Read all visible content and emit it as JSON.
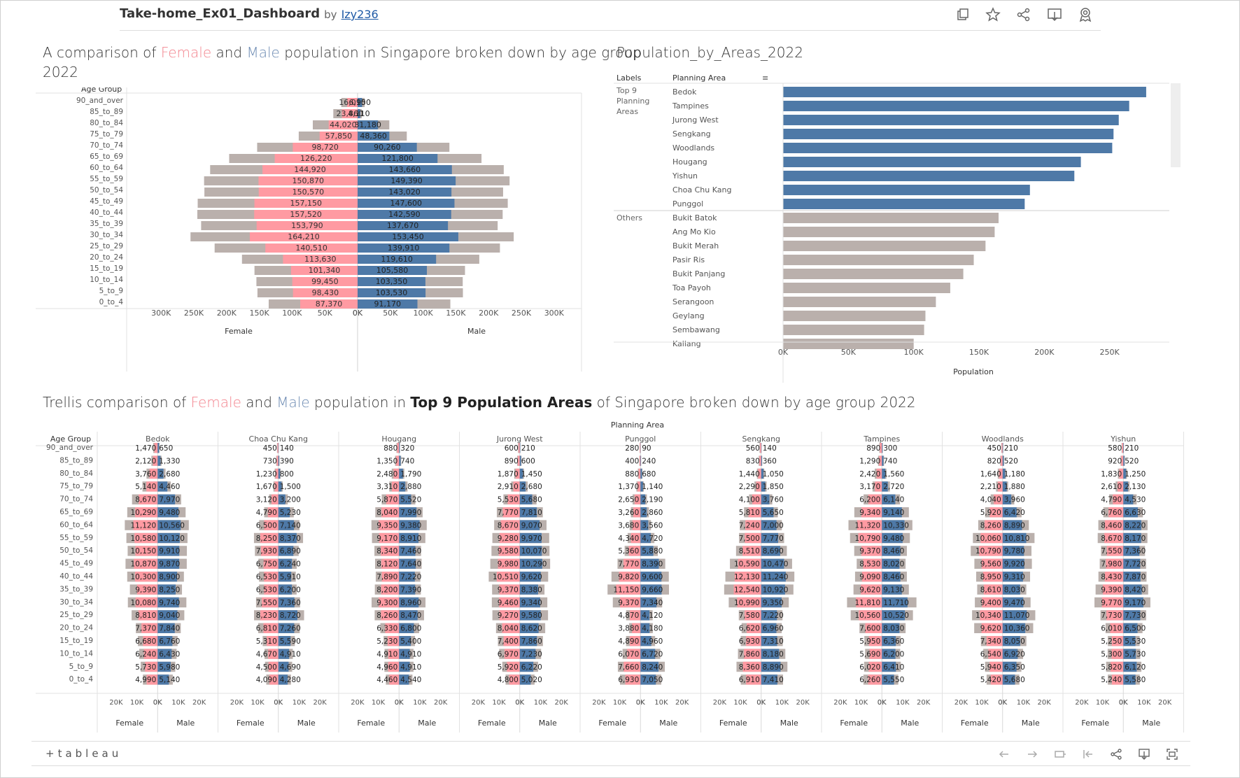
{
  "header": {
    "title": "Take-home_Ex01_Dashboard",
    "by_label": "by",
    "author": "Izy236",
    "icons": [
      "duplicate-icon",
      "favorite-icon",
      "share-icon",
      "download-icon",
      "metrics-icon"
    ]
  },
  "titles": {
    "chart1": {
      "pre": "A comparison of ",
      "female": "Female",
      "mid": " and ",
      "male": "Male",
      "post": " population in Singapore broken down by age group",
      "line2": "2022"
    },
    "chart2": "Population_by_Areas_2022",
    "chart3": {
      "pre": "Trellis comparison of ",
      "female": "Female",
      "mid": " and ",
      "male": "Male",
      "mid2": " population in ",
      "bold": "Top 9 Population Areas",
      "post": " of Singapore broken down by age group 2022"
    }
  },
  "colors": {
    "female": "#ff9aa2",
    "male": "#4e79a7",
    "other": "#bab0ac",
    "female_text": "#f3858f",
    "male_text": "#6d8bb3"
  },
  "footer": {
    "logo": "+tableau",
    "icons": [
      "undo-icon",
      "redo-icon",
      "revert-icon",
      "pause-icon",
      "share-icon",
      "download-icon",
      "fullscreen-icon"
    ]
  },
  "chart_data": [
    {
      "type": "bar",
      "title": "A comparison of Female and Male population in Singapore broken down by age group 2022",
      "row_header": "Age Group",
      "categories": [
        "90_and_over",
        "85_to_89",
        "80_to_84",
        "75_to_79",
        "70_to_74",
        "65_to_69",
        "60_to_64",
        "55_to_59",
        "50_to_54",
        "45_to_49",
        "40_to_44",
        "35_to_39",
        "30_to_34",
        "25_to_29",
        "20_to_24",
        "15_to_19",
        "10_to_14",
        "5_to_9",
        "0_to_4"
      ],
      "series": [
        {
          "name": "Female",
          "values": [
            16010,
            23860,
            44020,
            57850,
            98720,
            126220,
            144920,
            150870,
            150570,
            157150,
            157520,
            153790,
            164210,
            140510,
            113630,
            101340,
            99450,
            98430,
            87370
          ],
          "labels": [
            "16,010",
            "23,860",
            "44,020",
            "57,850",
            "98,720",
            "126,220",
            "144,920",
            "150,870",
            "150,570",
            "157,150",
            "157,520",
            "153,790",
            "164,210",
            "140,510",
            "113,630",
            "101,340",
            "99,450",
            "98,430",
            "87,370"
          ]
        },
        {
          "name": "Male",
          "values": [
            6950,
            4110,
            31180,
            48360,
            90260,
            121800,
            143660,
            149390,
            143020,
            147600,
            142590,
            137670,
            153450,
            139910,
            119610,
            105580,
            103350,
            103530,
            91170
          ],
          "labels": [
            "6,950",
            "4,110",
            "31,180",
            "48,360",
            "90,260",
            "121,800",
            "143,660",
            "149,390",
            "143,020",
            "147,600",
            "142,590",
            "137,670",
            "153,450",
            "139,910",
            "119,610",
            "105,580",
            "103,350",
            "103,530",
            "91,170"
          ]
        }
      ],
      "female_axis": {
        "label": "Female",
        "ticks": [
          "300K",
          "250K",
          "200K",
          "150K",
          "100K",
          "50K",
          "0K"
        ],
        "range": [
          0,
          340000
        ]
      },
      "male_axis": {
        "label": "Male",
        "ticks": [
          "0K",
          "50K",
          "100K",
          "150K",
          "200K",
          "250K",
          "300K"
        ],
        "range": [
          0,
          340000
        ]
      }
    },
    {
      "type": "bar",
      "title": "Population_by_Areas_2022",
      "col_headers": [
        "Labels",
        "Planning Area"
      ],
      "groups": [
        {
          "label": "Top 9 Planning Areas",
          "areas": [
            "Bedok",
            "Tampines",
            "Jurong West",
            "Sengkang",
            "Woodlands",
            "Hougang",
            "Yishun",
            "Choa Chu Kang",
            "Punggol"
          ],
          "values": [
            278000,
            265000,
            257000,
            253000,
            252000,
            228000,
            223000,
            189000,
            185000
          ]
        },
        {
          "label": "Others",
          "areas": [
            "Bukit Batok",
            "Ang Mo Kio",
            "Bukit Merah",
            "Pasir Ris",
            "Bukit Panjang",
            "Toa Payoh",
            "Serangoon",
            "Geylang",
            "Sembawang",
            "Kallang"
          ],
          "values": [
            165000,
            162000,
            155000,
            146000,
            138000,
            128000,
            117000,
            109000,
            108000,
            100000
          ]
        }
      ],
      "xlabel": "Population",
      "ticks": [
        "0K",
        "50K",
        "100K",
        "150K",
        "200K",
        "250K"
      ],
      "range": [
        0,
        300000
      ]
    },
    {
      "type": "bar",
      "title": "Trellis comparison of Female and Male population in Top 9 Population Areas of Singapore broken down by age group 2022",
      "column_header": "Planning Area",
      "row_header": "Age Group",
      "categories": [
        "90_and_over",
        "85_to_89",
        "80_to_84",
        "75_to_79",
        "70_to_74",
        "65_to_69",
        "60_to_64",
        "55_to_59",
        "50_to_54",
        "45_to_49",
        "40_to_44",
        "35_to_39",
        "30_to_34",
        "25_to_29",
        "20_to_24",
        "15_to_19",
        "10_to_14",
        "5_to_9",
        "0_to_4"
      ],
      "female_axis_label": "Female",
      "male_axis_label": "Male",
      "ticks_female": [
        "20K",
        "10K",
        "0K"
      ],
      "ticks_male": [
        "0K",
        "10K",
        "20K"
      ],
      "range": [
        0,
        24000
      ],
      "panels": [
        {
          "area": "Bedok",
          "female": [
            1470,
            2120,
            3760,
            5140,
            8670,
            10290,
            11120,
            10580,
            10150,
            10870,
            10300,
            9390,
            10080,
            8810,
            7370,
            6680,
            6240,
            5730,
            4990
          ],
          "male": [
            650,
            1330,
            2680,
            4460,
            7970,
            9480,
            10560,
            10120,
            9910,
            9870,
            8900,
            8250,
            9740,
            9040,
            7840,
            6760,
            6430,
            5980,
            5140
          ]
        },
        {
          "area": "Choa Chu Kang",
          "female": [
            450,
            730,
            1230,
            1670,
            3120,
            4790,
            6500,
            8250,
            7930,
            6750,
            6530,
            6530,
            7550,
            8230,
            6810,
            5310,
            4670,
            4500,
            4090
          ],
          "male": [
            140,
            390,
            800,
            1500,
            3200,
            5230,
            7140,
            8370,
            6890,
            6240,
            5910,
            6200,
            7360,
            8720,
            7260,
            5590,
            4910,
            4690,
            4280
          ]
        },
        {
          "area": "Hougang",
          "female": [
            880,
            1350,
            2480,
            3310,
            5870,
            8040,
            9350,
            9170,
            8340,
            8120,
            7890,
            8200,
            9300,
            8260,
            6330,
            5230,
            4910,
            4960,
            4460
          ]
        },
        {
          "area": "Jurong West",
          "female": [
            600,
            890,
            1870,
            2910,
            5530,
            7770,
            8670,
            9280,
            9580,
            9980,
            10510,
            9370,
            9460,
            9270,
            8040,
            7400,
            6970,
            5920,
            4800
          ]
        },
        {
          "area": "Punggol",
          "female": [
            280,
            400,
            880,
            1370,
            2650,
            3260,
            3680,
            4340,
            5360,
            7770,
            9820,
            11150,
            9370,
            4870,
            3880,
            4890,
            6070,
            7660,
            6930
          ]
        },
        {
          "area": "Sengkang",
          "female": [
            560,
            830,
            1440,
            2290,
            4100,
            5810,
            7240,
            7500,
            8510,
            10590,
            12130,
            12540,
            10990,
            7580,
            6620,
            6930,
            7860,
            8360,
            6910
          ]
        },
        {
          "area": "Tampines",
          "female": [
            890,
            1290,
            2420,
            3170,
            6200,
            9340,
            11320,
            10790,
            9370,
            8530,
            9090,
            9620,
            11810,
            10560,
            7600,
            5950,
            5690,
            6020,
            6260
          ]
        },
        {
          "area": "Woodlands",
          "female": [
            450,
            820,
            1640,
            2210,
            4040,
            5920,
            8260,
            10060,
            10790,
            9560,
            8950,
            8610,
            9400,
            10340,
            9620,
            7340,
            6540,
            5940,
            5420
          ]
        },
        {
          "area": "Yishun",
          "female": [
            580,
            920,
            1830,
            2610,
            4790,
            6760,
            8460,
            8670,
            7550,
            7980,
            8430,
            9390,
            9770,
            7730,
            6010,
            5250,
            5300,
            5820,
            5240
          ]
        }
      ],
      "male_values": {
        "Hougang": [
          320,
          740,
          1790,
          2880,
          5520,
          7990,
          9380,
          8910,
          7460,
          7640,
          7220,
          7390,
          8960,
          8470,
          6800,
          5400,
          4910,
          4910,
          4540
        ],
        "Jurong West": [
          210,
          600,
          1450,
          2680,
          5680,
          7810,
          9070,
          9970,
          10070,
          10290,
          9620,
          8380,
          9340,
          9580,
          8620,
          7860,
          7230,
          6220,
          5020
        ],
        "Punggol": [
          90,
          240,
          680,
          1140,
          2190,
          2860,
          3560,
          4720,
          5880,
          8390,
          9600,
          9660,
          7340,
          4120,
          4180,
          4960,
          6720,
          8240,
          7050
        ],
        "Sengkang": [
          140,
          360,
          1050,
          1850,
          3760,
          5650,
          7000,
          7770,
          8690,
          10470,
          11240,
          10920,
          9350,
          7220,
          6960,
          7310,
          8180,
          8890,
          7410
        ],
        "Tampines": [
          300,
          740,
          1560,
          2720,
          6140,
          9140,
          10330,
          9480,
          8460,
          8020,
          8460,
          9130,
          11710,
          10520,
          8030,
          6360,
          6200,
          6410,
          5550
        ],
        "Woodlands": [
          210,
          520,
          1180,
          1880,
          3960,
          6420,
          8890,
          10810,
          9780,
          9920,
          9310,
          8030,
          9470,
          11070,
          10360,
          8050,
          6920,
          6350,
          5680
        ],
        "Yishun": [
          210,
          520,
          1250,
          2130,
          4530,
          6630,
          8220,
          8170,
          7360,
          7720,
          7870,
          8420,
          9170,
          7730,
          6500,
          5530,
          5730,
          6120,
          5580
        ]
      }
    }
  ]
}
